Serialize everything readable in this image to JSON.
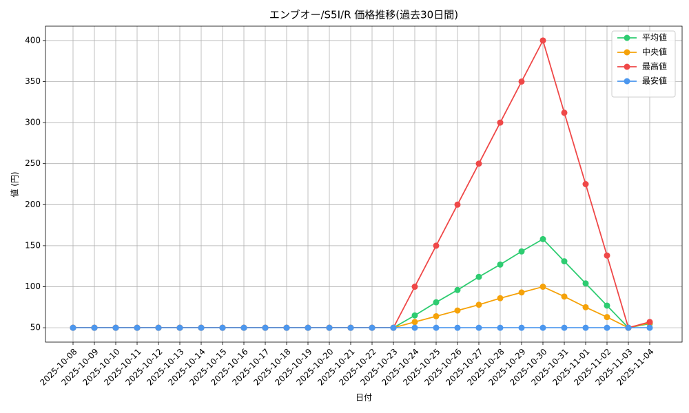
{
  "chart_data": {
    "type": "line",
    "title": "エンブオー/S5I/R 価格推移(過去30日間)",
    "x_label": "日付",
    "y_label": "値 (円)",
    "categories": [
      "2025-10-08",
      "2025-10-09",
      "2025-10-10",
      "2025-10-11",
      "2025-10-12",
      "2025-10-13",
      "2025-10-14",
      "2025-10-15",
      "2025-10-16",
      "2025-10-17",
      "2025-10-18",
      "2025-10-19",
      "2025-10-20",
      "2025-10-21",
      "2025-10-22",
      "2025-10-23",
      "2025-10-24",
      "2025-10-25",
      "2025-10-26",
      "2025-10-27",
      "2025-10-28",
      "2025-10-29",
      "2025-10-30",
      "2025-10-31",
      "2025-11-01",
      "2025-11-02",
      "2025-11-03",
      "2025-11-04"
    ],
    "series": [
      {
        "name": "平均値",
        "color": "#2ecc71",
        "values": [
          50,
          50,
          50,
          50,
          50,
          50,
          50,
          50,
          50,
          50,
          50,
          50,
          50,
          50,
          50,
          50,
          65,
          81,
          96,
          112,
          127,
          143,
          158,
          131,
          104,
          77,
          50,
          55
        ]
      },
      {
        "name": "中央値",
        "color": "#f5a20a",
        "values": [
          50,
          50,
          50,
          50,
          50,
          50,
          50,
          50,
          50,
          50,
          50,
          50,
          50,
          50,
          50,
          50,
          57,
          64,
          71,
          78,
          86,
          93,
          100,
          88,
          75,
          63,
          50,
          56
        ]
      },
      {
        "name": "最高値",
        "color": "#ef4848",
        "values": [
          50,
          50,
          50,
          50,
          50,
          50,
          50,
          50,
          50,
          50,
          50,
          50,
          50,
          50,
          50,
          50,
          100,
          150,
          200,
          250,
          300,
          350,
          400,
          312,
          225,
          138,
          50,
          57
        ]
      },
      {
        "name": "最安値",
        "color": "#4c97ee",
        "values": [
          50,
          50,
          50,
          50,
          50,
          50,
          50,
          50,
          50,
          50,
          50,
          50,
          50,
          50,
          50,
          50,
          50,
          50,
          50,
          50,
          50,
          50,
          50,
          50,
          50,
          50,
          50,
          50
        ]
      }
    ],
    "ylim": [
      32.5,
      417.5
    ],
    "yticks": [
      50,
      100,
      150,
      200,
      250,
      300,
      350,
      400
    ],
    "grid": true,
    "legend": "upper right"
  }
}
